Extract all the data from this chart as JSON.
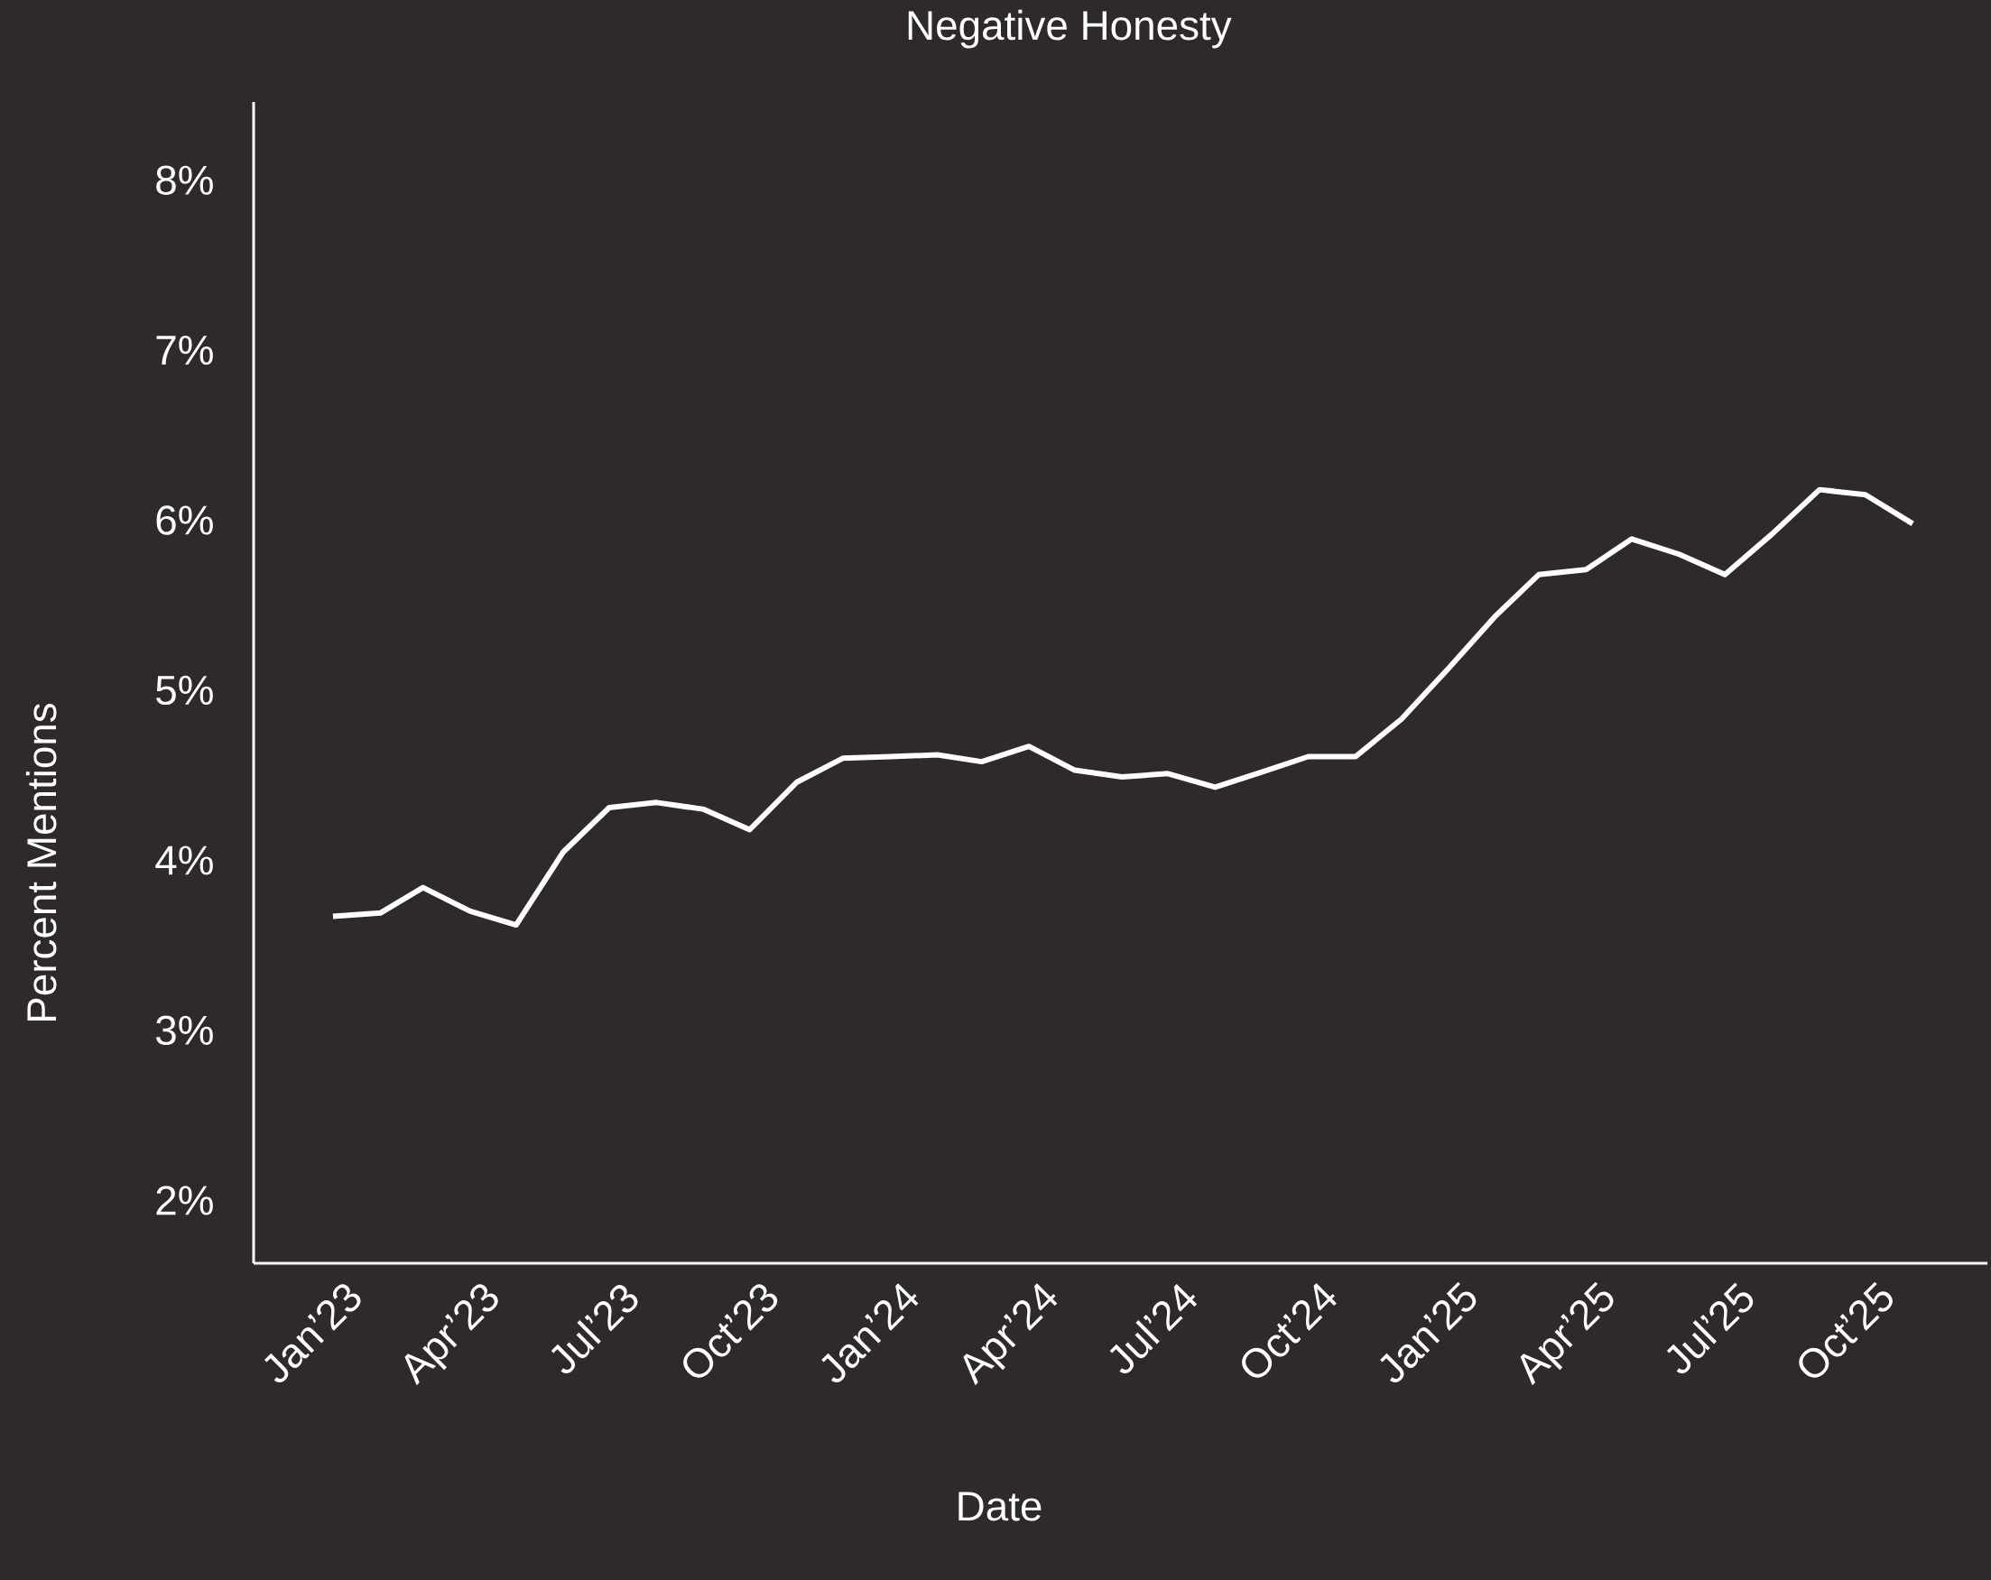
{
  "chart_data": {
    "type": "line",
    "title": "Negative Honesty",
    "xlabel": "Date",
    "ylabel": "Percent Mentions",
    "x": [
      "2023-01",
      "2023-02",
      "2023-03",
      "2023-04",
      "2023-05",
      "2023-06",
      "2023-07",
      "2023-08",
      "2023-09",
      "2023-10",
      "2023-11",
      "2023-12",
      "2024-01",
      "2024-02",
      "2024-03",
      "2024-04",
      "2024-05",
      "2024-06",
      "2024-07",
      "2024-08",
      "2024-09",
      "2024-10",
      "2024-11",
      "2024-12",
      "2025-01",
      "2025-02",
      "2025-03",
      "2025-04",
      "2025-05",
      "2025-06",
      "2025-07",
      "2025-08",
      "2025-09",
      "2025-10",
      "2025-11"
    ],
    "series": [
      {
        "color": "#ffffff",
        "values": [
          3.67,
          3.69,
          3.84,
          3.7,
          3.62,
          4.05,
          4.31,
          4.34,
          4.3,
          4.18,
          4.46,
          4.6,
          4.61,
          4.62,
          4.58,
          4.67,
          4.53,
          4.49,
          4.51,
          4.43,
          4.52,
          4.61,
          4.61,
          4.83,
          5.13,
          5.44,
          5.68,
          5.71,
          5.89,
          5.8,
          5.68,
          5.92,
          6.18,
          6.15,
          5.98
        ]
      }
    ],
    "xlim": [
      "2022-11-10",
      "2025-12-20"
    ],
    "xticks": [
      {
        "value": "2023-01",
        "label": "Jan’23"
      },
      {
        "value": "2023-04",
        "label": "Apr’23"
      },
      {
        "value": "2023-07",
        "label": "Jul’23"
      },
      {
        "value": "2023-10",
        "label": "Oct’23"
      },
      {
        "value": "2024-01",
        "label": "Jan’24"
      },
      {
        "value": "2024-04",
        "label": "Apr’24"
      },
      {
        "value": "2024-07",
        "label": "Jul’24"
      },
      {
        "value": "2024-10",
        "label": "Oct’24"
      },
      {
        "value": "2025-01",
        "label": "Jan’25"
      },
      {
        "value": "2025-04",
        "label": "Apr’25"
      },
      {
        "value": "2025-07",
        "label": "Jul’25"
      },
      {
        "value": "2025-10",
        "label": "Oct’25"
      }
    ],
    "ylim": [
      1.63,
      8.46
    ],
    "yticks": [
      {
        "value": 2,
        "label": "2%"
      },
      {
        "value": 3,
        "label": "3%"
      },
      {
        "value": 4,
        "label": "4%"
      },
      {
        "value": 5,
        "label": "5%"
      },
      {
        "value": 6,
        "label": "6%"
      },
      {
        "value": 7,
        "label": "7%"
      },
      {
        "value": 8,
        "label": "8%"
      }
    ],
    "marker": "none",
    "line_style": "solid"
  }
}
